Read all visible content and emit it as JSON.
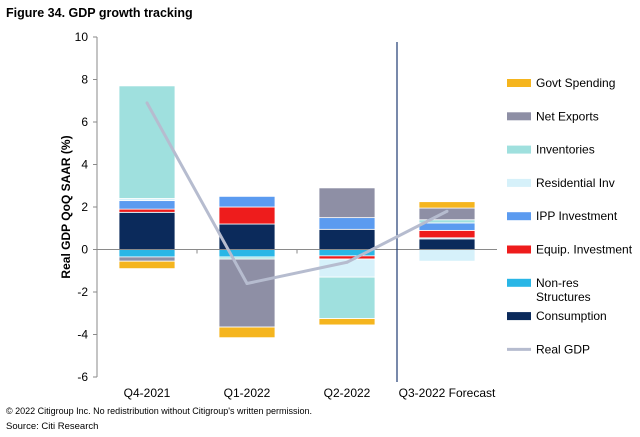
{
  "chart_data": {
    "type": "bar",
    "stacked": true,
    "title": "Figure 34. GDP growth tracking",
    "ylabel": "Real GDP QoQ SAAR (%)",
    "xlabel": "",
    "ylim": [
      -6,
      10
    ],
    "yticks": [
      -6,
      -4,
      -2,
      0,
      2,
      4,
      6,
      8,
      10
    ],
    "ytick_labels": [
      "-6",
      "-4",
      "-2",
      "0",
      "2",
      "4",
      "6",
      "8",
      "10"
    ],
    "categories": [
      "Q4-2021",
      "Q1-2022",
      "Q2-2022",
      "Q3-2022 Forecast"
    ],
    "forecast_divider_after": "Q2-2022",
    "grid": false,
    "legend_position": "right",
    "series": [
      {
        "name": "Consumption",
        "color": "#0b2a5b",
        "values": [
          1.75,
          1.2,
          0.95,
          0.5
        ]
      },
      {
        "name": "Non-res\nStructures",
        "color": "#29b6e6",
        "values": [
          -0.35,
          -0.35,
          -0.3,
          0.05
        ]
      },
      {
        "name": "Equip. Investment",
        "color": "#ee1c1c",
        "values": [
          0.15,
          0.8,
          -0.15,
          0.35
        ]
      },
      {
        "name": "IPP Investment",
        "color": "#5b9bf0",
        "values": [
          0.4,
          0.5,
          0.55,
          0.35
        ]
      },
      {
        "name": "Residential Inv",
        "color": "#d6f1fa",
        "values": [
          0.1,
          0.0,
          -0.85,
          -0.55
        ]
      },
      {
        "name": "Inventories",
        "color": "#9fe0de",
        "values": [
          5.3,
          -0.1,
          -1.95,
          0.15
        ]
      },
      {
        "name": "Net Exports",
        "color": "#8e8fa5",
        "values": [
          -0.2,
          -3.2,
          1.4,
          0.55
        ]
      },
      {
        "name": "Govt Spending",
        "color": "#f5b51e",
        "values": [
          -0.35,
          -0.5,
          -0.3,
          0.3
        ]
      }
    ],
    "legend_order": [
      "Govt Spending",
      "Net Exports",
      "Inventories",
      "Residential Inv",
      "IPP Investment",
      "Equip. Investment",
      "Non-res\nStructures",
      "Consumption",
      "Real GDP"
    ],
    "line": {
      "name": "Real GDP",
      "color": "#b6bccf",
      "values": [
        6.9,
        -1.6,
        -0.6,
        1.8
      ]
    },
    "notes": [
      "© 2022 Citigroup Inc. No redistribution without Citigroup's written permission.",
      "Source: Citi Research"
    ]
  }
}
